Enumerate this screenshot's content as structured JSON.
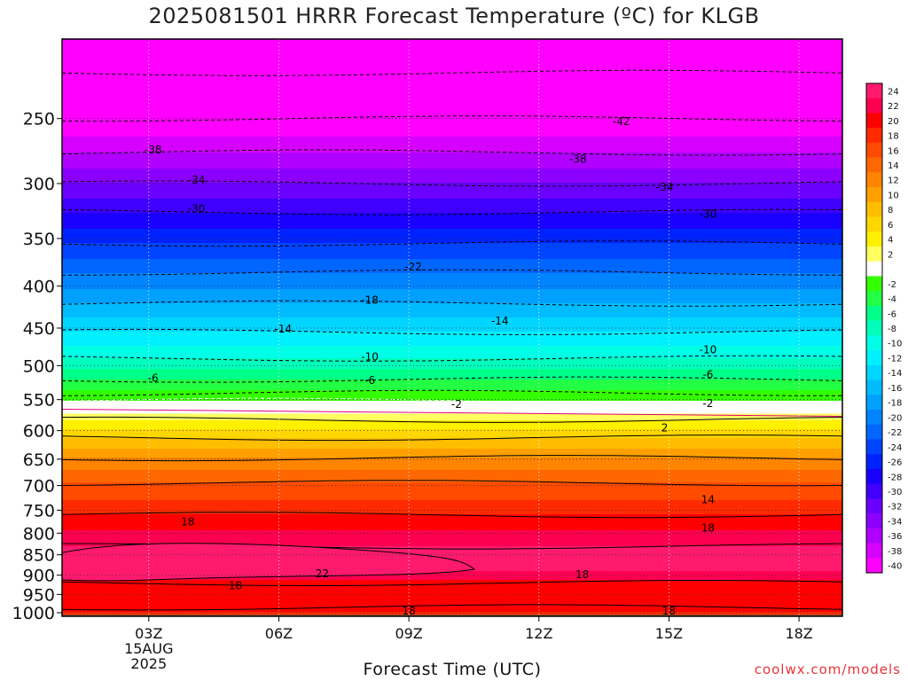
{
  "title": "2025081501 HRRR Forecast Temperature (ºC) for KLGB",
  "credit": "coolwx.com/models",
  "chart_data": {
    "type": "heatmap",
    "title": "2025081501 HRRR Forecast Temperature (ºC) for KLGB",
    "xlabel": "Forecast Time (UTC)",
    "ylabel": "",
    "x_ticks": [
      {
        "hour": 3,
        "label": "03Z",
        "sub": [
          "15AUG",
          "2025"
        ]
      },
      {
        "hour": 6,
        "label": "06Z",
        "sub": []
      },
      {
        "hour": 9,
        "label": "09Z",
        "sub": []
      },
      {
        "hour": 12,
        "label": "12Z",
        "sub": []
      },
      {
        "hour": 15,
        "label": "15Z",
        "sub": []
      },
      {
        "hour": 18,
        "label": "18Z",
        "sub": []
      }
    ],
    "xlim": [
      1,
      19
    ],
    "y_scale": "log-pressure",
    "ylim": [
      1010,
      200
    ],
    "y_ticks": [
      250,
      300,
      350,
      400,
      450,
      500,
      550,
      600,
      650,
      700,
      750,
      800,
      850,
      900,
      950,
      1000
    ],
    "grid": true,
    "ground_level_hpa": 1005,
    "temperature_profile": [
      {
        "p": 200,
        "t": -48
      },
      {
        "p": 220,
        "t": -46
      },
      {
        "p": 250,
        "t": -42
      },
      {
        "p": 275,
        "t": -38
      },
      {
        "p": 300,
        "t": -34
      },
      {
        "p": 325,
        "t": -30
      },
      {
        "p": 355,
        "t": -26
      },
      {
        "p": 385,
        "t": -22
      },
      {
        "p": 420,
        "t": -18
      },
      {
        "p": 455,
        "t": -14
      },
      {
        "p": 490,
        "t": -10
      },
      {
        "p": 520,
        "t": -6
      },
      {
        "p": 552,
        "t": -2
      },
      {
        "p": 565,
        "t": 0
      },
      {
        "p": 582,
        "t": 2
      },
      {
        "p": 612,
        "t": 6
      },
      {
        "p": 648,
        "t": 10
      },
      {
        "p": 695,
        "t": 14
      },
      {
        "p": 760,
        "t": 18
      },
      {
        "p": 830,
        "t": 22
      },
      {
        "p": 880,
        "t": 23
      },
      {
        "p": 920,
        "t": 19
      },
      {
        "p": 1000,
        "t": 18
      }
    ],
    "contour_labels": [
      {
        "value": "-38",
        "hour": 3.1,
        "p": 273
      },
      {
        "value": "-34",
        "hour": 4.1,
        "p": 297
      },
      {
        "value": "-30",
        "hour": 4.1,
        "p": 322
      },
      {
        "value": "-42",
        "hour": 13.9,
        "p": 252
      },
      {
        "value": "-38",
        "hour": 12.9,
        "p": 280
      },
      {
        "value": "-34",
        "hour": 14.9,
        "p": 303
      },
      {
        "value": "-30",
        "hour": 15.9,
        "p": 327
      },
      {
        "value": "-22",
        "hour": 9.1,
        "p": 379
      },
      {
        "value": "-18",
        "hour": 8.1,
        "p": 416
      },
      {
        "value": "-14",
        "hour": 6.1,
        "p": 451
      },
      {
        "value": "-14",
        "hour": 11.1,
        "p": 441
      },
      {
        "value": "-10",
        "hour": 8.1,
        "p": 488
      },
      {
        "value": "-10",
        "hour": 15.9,
        "p": 478
      },
      {
        "value": "-6",
        "hour": 3.1,
        "p": 518
      },
      {
        "value": "-6",
        "hour": 8.1,
        "p": 521
      },
      {
        "value": "-6",
        "hour": 15.9,
        "p": 513
      },
      {
        "value": "-2",
        "hour": 10.1,
        "p": 557
      },
      {
        "value": "-2",
        "hour": 15.9,
        "p": 556
      },
      {
        "value": "2",
        "hour": 14.9,
        "p": 595
      },
      {
        "value": "14",
        "hour": 15.9,
        "p": 728
      },
      {
        "value": "18",
        "hour": 3.9,
        "p": 775
      },
      {
        "value": "18",
        "hour": 15.9,
        "p": 789
      },
      {
        "value": "22",
        "hour": 7.0,
        "p": 896
      },
      {
        "value": "18",
        "hour": 5.0,
        "p": 927
      },
      {
        "value": "18",
        "hour": 13.0,
        "p": 899
      },
      {
        "value": "18",
        "hour": 9.0,
        "p": 995
      },
      {
        "value": "18",
        "hour": 15.0,
        "p": 995
      }
    ],
    "colorbar": {
      "labels": [
        "24",
        "22",
        "20",
        "18",
        "16",
        "14",
        "12",
        "10",
        "8",
        "6",
        "4",
        "2",
        "",
        "-2",
        "-4",
        "-6",
        "-8",
        "-10",
        "-12",
        "-14",
        "-16",
        "-18",
        "-20",
        "-22",
        "-24",
        "-26",
        "-28",
        "-30",
        "-32",
        "-34",
        "-36",
        "-38",
        "-40"
      ],
      "colors": [
        "#ff1a6e",
        "#ff0050",
        "#ff0000",
        "#ff2a00",
        "#ff4a00",
        "#ff6800",
        "#ff8400",
        "#ffa000",
        "#ffbd00",
        "#ffd700",
        "#fff000",
        "#ffff60",
        "#ffffff",
        "#33ff00",
        "#22ff44",
        "#00ff88",
        "#00ffbb",
        "#00ffe6",
        "#00f0ff",
        "#00d6ff",
        "#00bcff",
        "#00a0ff",
        "#0084ff",
        "#0066ff",
        "#0044ff",
        "#0022ff",
        "#1a00ff",
        "#4000ff",
        "#6a00ff",
        "#8c00ff",
        "#b000ff",
        "#d600ff",
        "#ff00ff"
      ]
    },
    "ground_color": "#a0522d"
  }
}
